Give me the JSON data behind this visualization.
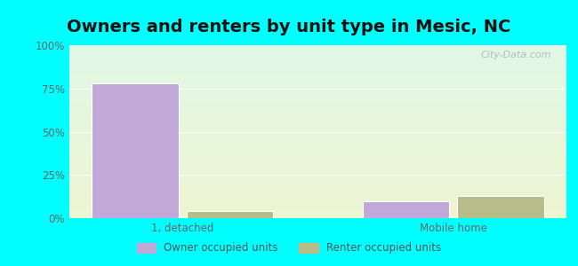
{
  "title": "Owners and renters by unit type in Mesic, NC",
  "categories": [
    "1, detached",
    "Mobile home"
  ],
  "owner_values": [
    78,
    10
  ],
  "renter_values": [
    4,
    13
  ],
  "owner_color": "#c0a8d8",
  "renter_color": "#b8bc88",
  "ylim": [
    0,
    100
  ],
  "yticks": [
    0,
    25,
    50,
    75,
    100
  ],
  "ytick_labels": [
    "0%",
    "25%",
    "50%",
    "75%",
    "100%"
  ],
  "legend_owner": "Owner occupied units",
  "legend_renter": "Renter occupied units",
  "outer_bg": "#00ffff",
  "bar_width": 0.32,
  "title_fontsize": 14,
  "watermark": "City-Data.com"
}
